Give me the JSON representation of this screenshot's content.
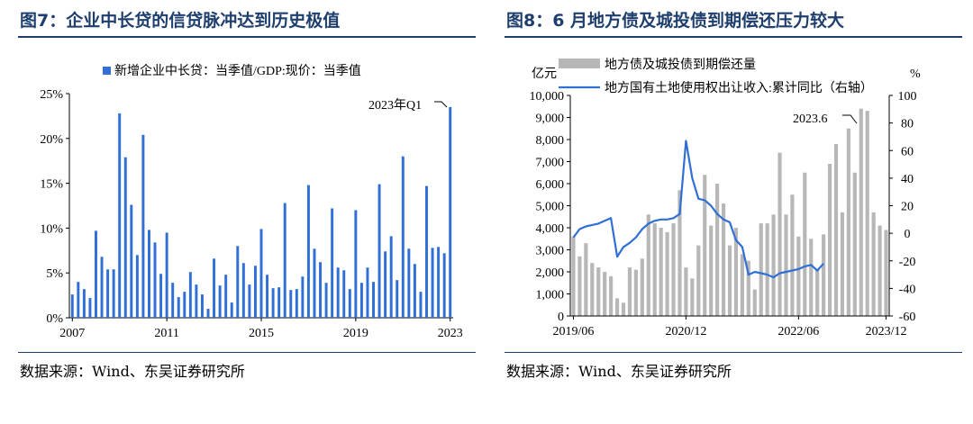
{
  "left": {
    "title": "图7：企业中长贷的信贷脉冲达到历史极值",
    "source": "数据来源：Wind、东吴证券研究所",
    "chart_data": {
      "type": "bar",
      "legend": "新增企业中长贷：当季值/GDP:现价：当季值",
      "legend_position": "top",
      "annotation": "2023年Q1",
      "color": "#2f6fd6",
      "x_tick_labels": [
        "2007",
        "2011",
        "2015",
        "2019",
        "2023"
      ],
      "y_tick_labels": [
        "0%",
        "5%",
        "10%",
        "15%",
        "20%",
        "25%"
      ],
      "ylim": [
        0,
        25
      ],
      "values": [
        2.6,
        4.0,
        3.2,
        2.2,
        9.7,
        6.8,
        5.4,
        5.4,
        22.8,
        17.9,
        12.6,
        7.0,
        20.4,
        9.8,
        8.4,
        4.9,
        9.5,
        3.9,
        2.3,
        2.9,
        5.1,
        3.7,
        2.6,
        1.0,
        6.6,
        3.6,
        4.8,
        1.7,
        8.0,
        6.1,
        3.7,
        5.8,
        9.9,
        4.8,
        3.3,
        3.4,
        12.8,
        3.1,
        3.2,
        4.6,
        14.8,
        7.7,
        6.2,
        3.9,
        12.2,
        5.6,
        5.3,
        3.2,
        12.0,
        3.9,
        5.6,
        4.0,
        14.9,
        7.4,
        9.1,
        4.2,
        18.0,
        7.7,
        6.0,
        2.9,
        14.7,
        7.8,
        7.9,
        7.2,
        23.5
      ]
    }
  },
  "right": {
    "title": "图8：6 月地方债及城投债到期偿还压力较大",
    "source": "数据来源：Wind、东吴证券研究所",
    "chart_data": {
      "type": "bar+line",
      "left_axis_unit": "亿元",
      "right_axis_unit": "%",
      "left_tick_labels": [
        "0",
        "1,000",
        "2,000",
        "3,000",
        "4,000",
        "5,000",
        "6,000",
        "7,000",
        "8,000",
        "9,000",
        "10,000"
      ],
      "right_tick_labels": [
        "-60",
        "-40",
        "-20",
        "0",
        "20",
        "40",
        "60",
        "80",
        "100"
      ],
      "x_tick_labels": [
        "2019/06",
        "2020/12",
        "2022/06",
        "2023/12"
      ],
      "ylim_left": [
        0,
        10000
      ],
      "ylim_right": [
        -60,
        100
      ],
      "annotation": "2023.6",
      "bar_series": {
        "name": "地方债及城投债到期偿还量",
        "color": "#b7b7b7",
        "values": [
          3600,
          2700,
          3300,
          2400,
          2200,
          2000,
          1800,
          800,
          600,
          2200,
          2100,
          2600,
          4600,
          4200,
          4000,
          3800,
          4200,
          5700,
          2200,
          1700,
          3200,
          6400,
          4100,
          6000,
          5100,
          3200,
          4000,
          2800,
          2500,
          1200,
          4200,
          4200,
          4600,
          7400,
          4600,
          5500,
          3600,
          6500,
          3500,
          2100,
          3700,
          6900,
          7800,
          4700,
          8500,
          6500,
          9400,
          9300,
          4700,
          4100,
          3900
        ]
      },
      "line_series": {
        "name": "地方国有土地使用权出让收入:累计同比（右轴）",
        "color": "#2f6fd6",
        "values": [
          -3,
          3,
          5,
          6,
          7,
          9,
          11,
          -17,
          -10,
          -7,
          -3,
          3,
          7,
          9,
          10,
          10,
          11,
          14,
          67,
          40,
          25,
          24,
          20,
          14,
          10,
          8,
          -5,
          -10,
          -30,
          -28,
          -29,
          -30,
          -32,
          -29,
          -28,
          -27,
          -26,
          -24,
          -23,
          -27,
          -22
        ]
      }
    }
  }
}
